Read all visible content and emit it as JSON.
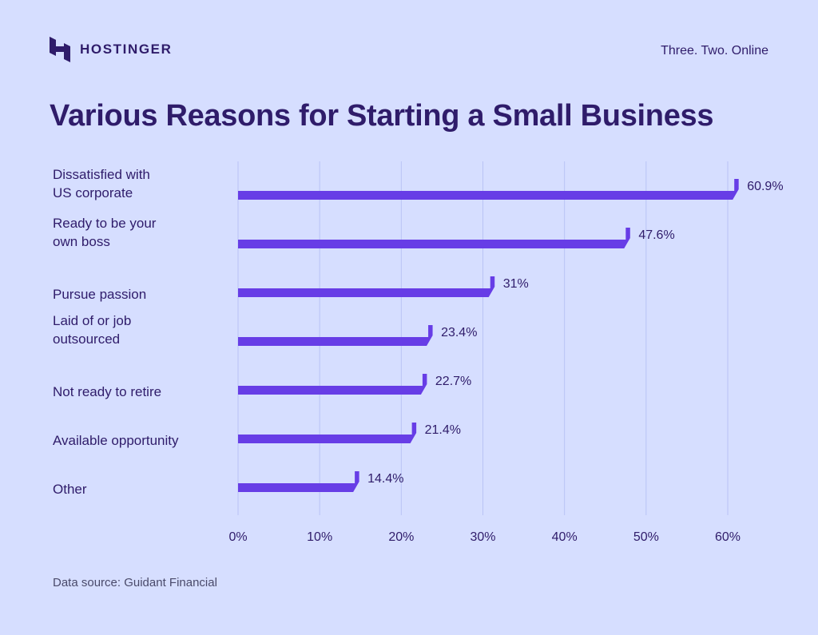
{
  "brand": {
    "name": "HOSTINGER",
    "tagline": "Three. Two. Online",
    "logo_icon": "hostinger-h-logo-icon"
  },
  "colors": {
    "background": "#d6deff",
    "bar": "#673de6",
    "text": "#2f1c6a",
    "grid": "#b9c3f5"
  },
  "source": "Data source: Guidant Financial",
  "chart_data": {
    "type": "bar",
    "orientation": "horizontal",
    "title": "Various Reasons for Starting a Small Business",
    "categories": [
      [
        "Dissatisfied with",
        "US corporate"
      ],
      [
        "Ready to be your",
        "own boss"
      ],
      [
        "Pursue passion"
      ],
      [
        "Laid of or job",
        "outsourced"
      ],
      [
        "Not ready to retire"
      ],
      [
        "Available opportunity"
      ],
      [
        "Other"
      ]
    ],
    "values": [
      60.9,
      47.6,
      31,
      23.4,
      22.7,
      21.4,
      14.4
    ],
    "value_labels": [
      "60.9%",
      "47.6%",
      "31%",
      "23.4%",
      "22.7%",
      "21.4%",
      "14.4%"
    ],
    "x_ticks": [
      "0%",
      "10%",
      "20%",
      "30%",
      "40%",
      "50%",
      "60%"
    ],
    "xlim": [
      0,
      60
    ],
    "grid": true,
    "legend": "none"
  }
}
